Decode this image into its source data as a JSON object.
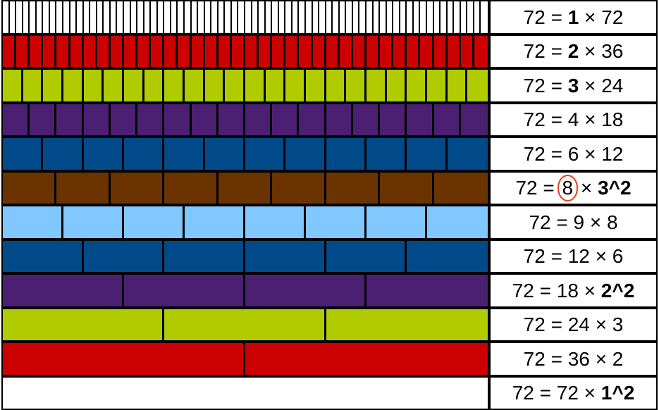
{
  "rows": [
    {
      "pieces": 72,
      "color": "#ffffff",
      "parts": [
        "72 = ",
        "1",
        " × 72"
      ],
      "bold": [
        1
      ]
    },
    {
      "pieces": 36,
      "color": "#cc0000",
      "parts": [
        "72 = ",
        "2",
        " × 36"
      ],
      "bold": [
        1
      ]
    },
    {
      "pieces": 24,
      "color": "#b0cc00",
      "parts": [
        "72 = ",
        "3",
        " × 24"
      ],
      "bold": [
        1
      ]
    },
    {
      "pieces": 18,
      "color": "#4b1f72",
      "parts": [
        "72 = 4 × 18"
      ],
      "bold": []
    },
    {
      "pieces": 12,
      "color": "#004a8a",
      "parts": [
        "72 = 6 × 12"
      ],
      "bold": []
    },
    {
      "pieces": 9,
      "color": "#6a3300",
      "parts": [
        "72 = ",
        "8",
        " × ",
        "3^2"
      ],
      "bold": [
        3
      ],
      "circled": [
        1
      ]
    },
    {
      "pieces": 8,
      "color": "#80c8ff",
      "parts": [
        "72 = 9 × 8"
      ],
      "bold": []
    },
    {
      "pieces": 6,
      "color": "#004a8a",
      "parts": [
        "72 = 12 × 6"
      ],
      "bold": []
    },
    {
      "pieces": 4,
      "color": "#4b1f72",
      "parts": [
        "72 = 18 × ",
        "2^2"
      ],
      "bold": [
        1
      ]
    },
    {
      "pieces": 3,
      "color": "#b0cc00",
      "parts": [
        "72 = 24 × 3"
      ],
      "bold": []
    },
    {
      "pieces": 2,
      "color": "#cc0000",
      "parts": [
        "72 = 36 × 2"
      ],
      "bold": []
    },
    {
      "pieces": 1,
      "color": "#ffffff",
      "parts": [
        "72 = 72 × ",
        "1^2"
      ],
      "bold": [
        1
      ]
    }
  ]
}
